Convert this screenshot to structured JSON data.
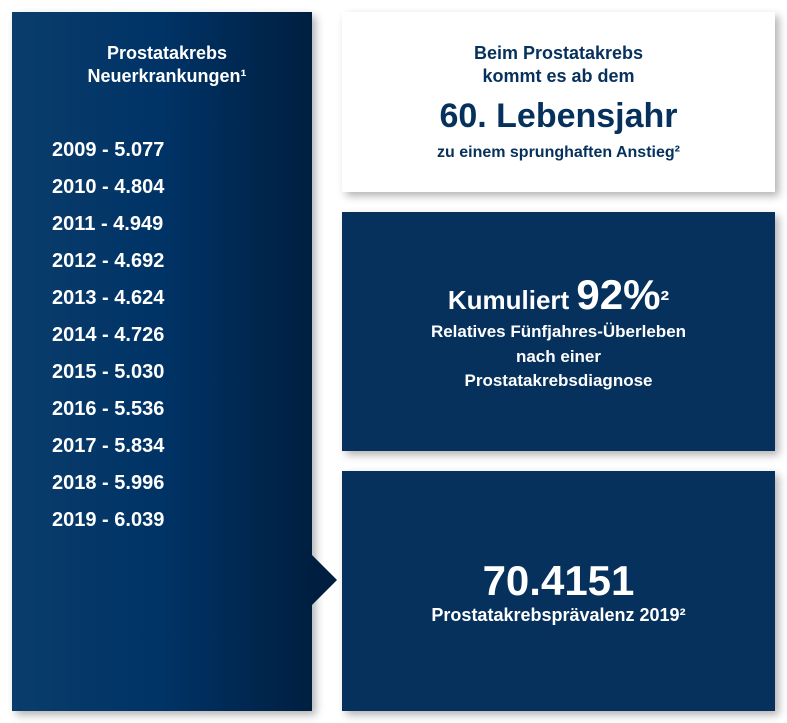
{
  "left": {
    "title_line1": "Prostatakrebs",
    "title_line2": "Neuerkrankungen¹",
    "years": [
      {
        "year": "2009",
        "value": "5.077"
      },
      {
        "year": "2010",
        "value": "4.804"
      },
      {
        "year": "2011",
        "value": "4.949"
      },
      {
        "year": "2012",
        "value": "4.692"
      },
      {
        "year": "2013",
        "value": "4.624"
      },
      {
        "year": "2014",
        "value": "4.726"
      },
      {
        "year": "2015",
        "value": "5.030"
      },
      {
        "year": "2016",
        "value": "5.536"
      },
      {
        "year": "2017",
        "value": "5.834"
      },
      {
        "year": "2018",
        "value": "5.996"
      },
      {
        "year": "2019",
        "value": "6.039"
      }
    ]
  },
  "card1": {
    "line_a": "Beim Prostatakrebs",
    "line_b": "kommt es ab dem",
    "big": "60. Lebensjahr",
    "line_c": "zu einem sprunghaften Anstieg²"
  },
  "card2": {
    "prefix": "Kumuliert ",
    "value": "92%",
    "suffix": "²",
    "sub_a": "Relatives Fünfjahres-Überleben",
    "sub_b": "nach einer",
    "sub_c": "Prostatakrebsdiagnose"
  },
  "card3": {
    "big": "70.4151",
    "sub": "Prostatakrebsprävalenz 2019²"
  },
  "colors": {
    "blue_dark": "#06315d",
    "blue_gradient_start": "#0a3d6b",
    "blue_gradient_end": "#001f40",
    "text_white": "#ffffff"
  }
}
